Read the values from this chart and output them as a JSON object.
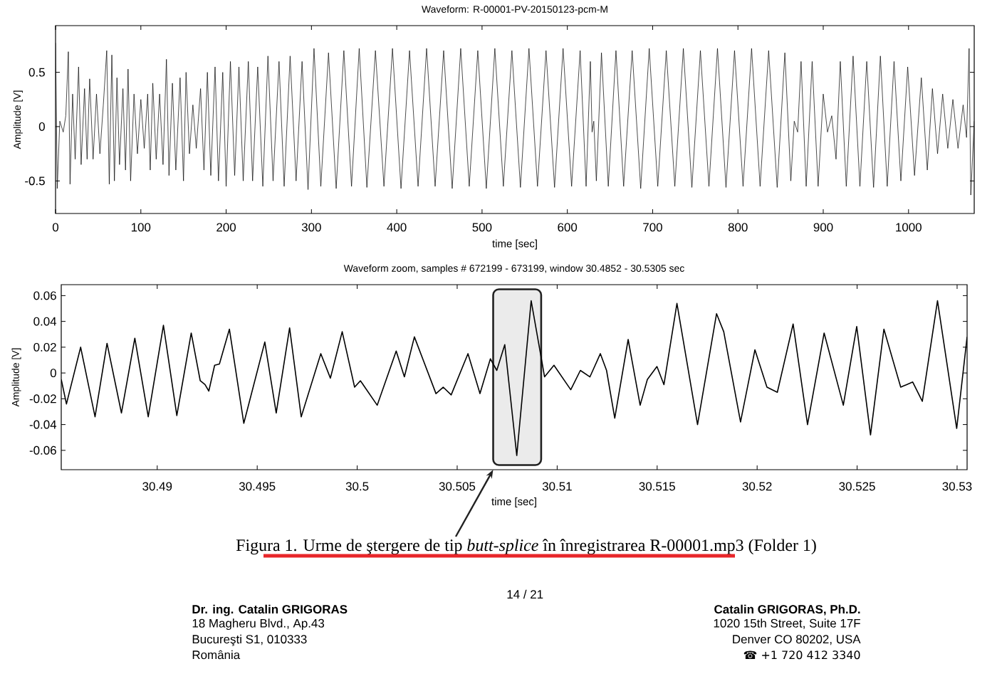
{
  "chart_data": [
    {
      "type": "line",
      "title": "Waveform: R-00001-PV-20150123-pcm-M",
      "xlabel": "time [sec]",
      "ylabel": "Amplitude [V]",
      "color": "#000000",
      "x": [
        0,
        2,
        5,
        9,
        12,
        15,
        17,
        20,
        23,
        27,
        30,
        34,
        37,
        40,
        44,
        48,
        52,
        56,
        60,
        63,
        66,
        69,
        72,
        75,
        79,
        82,
        85,
        88,
        92,
        96,
        100,
        104,
        108,
        111,
        114,
        118,
        122,
        126,
        130,
        133,
        137,
        141,
        146,
        150,
        153,
        157,
        161,
        165,
        170,
        174,
        178,
        182,
        187,
        191,
        196,
        200,
        205,
        210,
        215,
        220,
        226,
        231,
        237,
        243,
        249,
        255,
        262,
        268,
        275,
        282,
        289,
        296,
        303,
        311,
        320,
        329,
        338,
        347,
        356,
        365,
        375,
        385,
        395,
        405,
        415,
        425,
        435,
        445,
        455,
        465,
        475,
        485,
        495,
        505,
        515,
        525,
        535,
        545,
        555,
        565,
        575,
        585,
        595,
        605,
        615,
        622,
        627,
        629,
        631,
        634,
        640,
        648,
        657,
        666,
        676,
        686,
        696,
        706,
        716,
        726,
        736,
        746,
        756,
        766,
        776,
        786,
        796,
        806,
        816,
        826,
        836,
        846,
        855,
        862,
        866,
        870,
        874,
        880,
        887,
        894,
        900,
        905,
        910,
        915,
        920,
        927,
        935,
        943,
        951,
        959,
        967,
        975,
        983,
        991,
        999,
        1007,
        1015,
        1022,
        1028,
        1034,
        1040,
        1046,
        1052,
        1058,
        1064,
        1068,
        1071,
        1073,
        1077
      ],
      "values": [
        0.77,
        -0.57,
        0.05,
        -0.05,
        0.1,
        0.69,
        -0.53,
        0.3,
        -0.3,
        0.55,
        -0.35,
        0.35,
        -0.3,
        0.44,
        -0.3,
        0.3,
        -0.25,
        0.2,
        0.7,
        -0.53,
        0.66,
        -0.5,
        0.45,
        -0.35,
        0.35,
        -0.4,
        0.53,
        -0.5,
        0.3,
        -0.25,
        0.25,
        -0.2,
        0.3,
        -0.4,
        0.4,
        -0.3,
        0.3,
        -0.35,
        0.62,
        -0.45,
        0.4,
        -0.4,
        0.45,
        -0.5,
        0.5,
        -0.25,
        0.2,
        -0.2,
        0.35,
        -0.4,
        0.5,
        -0.45,
        0.55,
        -0.5,
        0.5,
        -0.55,
        0.6,
        -0.45,
        0.55,
        -0.5,
        0.6,
        -0.5,
        0.55,
        -0.55,
        0.65,
        -0.5,
        0.6,
        -0.55,
        0.65,
        -0.5,
        0.6,
        -0.58,
        0.72,
        -0.55,
        0.68,
        -0.57,
        0.7,
        -0.55,
        0.72,
        -0.56,
        0.7,
        -0.55,
        0.72,
        -0.57,
        0.7,
        -0.55,
        0.72,
        -0.55,
        0.7,
        -0.57,
        0.72,
        -0.55,
        0.7,
        -0.57,
        0.72,
        -0.55,
        0.7,
        -0.56,
        0.72,
        -0.55,
        0.7,
        -0.56,
        0.72,
        -0.55,
        0.7,
        -0.55,
        0.6,
        -0.05,
        0.05,
        -0.5,
        0.68,
        -0.55,
        0.7,
        -0.55,
        0.7,
        -0.57,
        0.72,
        -0.55,
        0.7,
        -0.55,
        0.72,
        -0.56,
        0.7,
        -0.55,
        0.72,
        -0.56,
        0.7,
        -0.55,
        0.72,
        -0.55,
        0.7,
        -0.56,
        0.68,
        -0.5,
        0.05,
        -0.05,
        0.6,
        -0.55,
        0.6,
        -0.55,
        0.3,
        -0.05,
        0.1,
        -0.3,
        0.6,
        -0.55,
        0.65,
        -0.55,
        0.6,
        -0.56,
        0.65,
        -0.55,
        0.6,
        -0.5,
        0.55,
        -0.45,
        0.45,
        -0.4,
        0.35,
        -0.25,
        0.3,
        -0.2,
        0.25,
        -0.2,
        0.2,
        -0.1,
        0.72,
        -0.63,
        0.05
      ],
      "xlim": [
        0,
        1077
      ],
      "xticks": [
        0,
        100,
        200,
        300,
        400,
        500,
        600,
        700,
        800,
        900,
        1000
      ],
      "ylim": [
        -0.8,
        0.93
      ],
      "yticks": [
        -0.5,
        0,
        0.5
      ]
    },
    {
      "type": "line",
      "title": "Waveform zoom, samples # 672199 - 673199, window 30.4852 - 30.5305 sec",
      "xlabel": "time [sec]",
      "ylabel": "Amplitude [V]",
      "color": "#000000",
      "x": [
        30.4852,
        30.48546,
        30.48617,
        30.48689,
        30.48749,
        30.48821,
        30.48888,
        30.48955,
        30.49031,
        30.49098,
        30.4917,
        30.49215,
        30.49239,
        30.49258,
        30.49287,
        30.49311,
        30.49361,
        30.49433,
        30.49538,
        30.49595,
        30.49662,
        30.4972,
        30.49818,
        30.49866,
        30.49925,
        30.49987,
        30.50016,
        30.501,
        30.50195,
        30.50236,
        30.50286,
        30.50394,
        30.5043,
        30.5047,
        30.50554,
        30.50614,
        30.50666,
        30.50698,
        30.50738,
        30.50798,
        30.5087,
        30.50937,
        30.50984,
        30.51068,
        30.51116,
        30.51164,
        30.51216,
        30.51247,
        30.51288,
        30.51355,
        30.51415,
        30.51451,
        30.51499,
        30.51534,
        30.51599,
        30.51702,
        30.51797,
        30.51833,
        30.51917,
        30.51989,
        30.52049,
        30.52101,
        30.5218,
        30.52252,
        30.52335,
        30.52431,
        30.52498,
        30.52567,
        30.52634,
        30.52718,
        30.52778,
        30.52826,
        30.52902,
        30.52998,
        30.5305
      ],
      "values": [
        -0.005,
        -0.024,
        0.02,
        -0.034,
        0.023,
        -0.031,
        0.027,
        -0.034,
        0.037,
        -0.033,
        0.031,
        -0.006,
        -0.009,
        -0.014,
        0.006,
        0.007,
        0.034,
        -0.039,
        0.024,
        -0.031,
        0.035,
        -0.034,
        0.015,
        -0.004,
        0.032,
        -0.011,
        -0.006,
        -0.025,
        0.017,
        -0.003,
        0.028,
        -0.016,
        -0.011,
        -0.017,
        0.015,
        -0.016,
        0.011,
        0.002,
        0.022,
        -0.064,
        0.056,
        -0.003,
        0.006,
        -0.013,
        0.002,
        -0.003,
        0.015,
        0.002,
        -0.035,
        0.026,
        -0.025,
        -0.005,
        0.005,
        -0.009,
        0.054,
        -0.04,
        0.046,
        0.032,
        -0.038,
        0.018,
        -0.011,
        -0.015,
        0.038,
        -0.04,
        0.031,
        -0.025,
        0.036,
        -0.048,
        0.034,
        -0.011,
        -0.007,
        -0.022,
        0.056,
        -0.043,
        0.028
      ],
      "xlim": [
        30.4852,
        30.5305
      ],
      "xticks": [
        30.49,
        30.495,
        30.5,
        30.505,
        30.51,
        30.515,
        30.52,
        30.525,
        30.53
      ],
      "ylim": [
        -0.075,
        0.0685
      ],
      "yticks": [
        -0.06,
        -0.04,
        -0.02,
        0,
        0.02,
        0.04,
        0.06
      ],
      "bands": [
        {
          "axis": "x",
          "from": 30.5068,
          "to": 30.5092
        }
      ],
      "annotations": [
        "Figura 1. Urme de ştergere de tip *butt-splice* în înregistrarea R-00001.mp3 (Folder 1)",
        "14 / 21",
        "Dr. ing. Catalin GRIGORAS",
        "18 Magheru Blvd., Ap.43",
        "Bucureşti S1, 010333",
        "România",
        "Catalin GRIGORAS, Ph.D.",
        "1020 15th Street, Suite 17F",
        "Denver CO 80202, USA",
        "☎ +1 720 412 3340"
      ]
    }
  ]
}
